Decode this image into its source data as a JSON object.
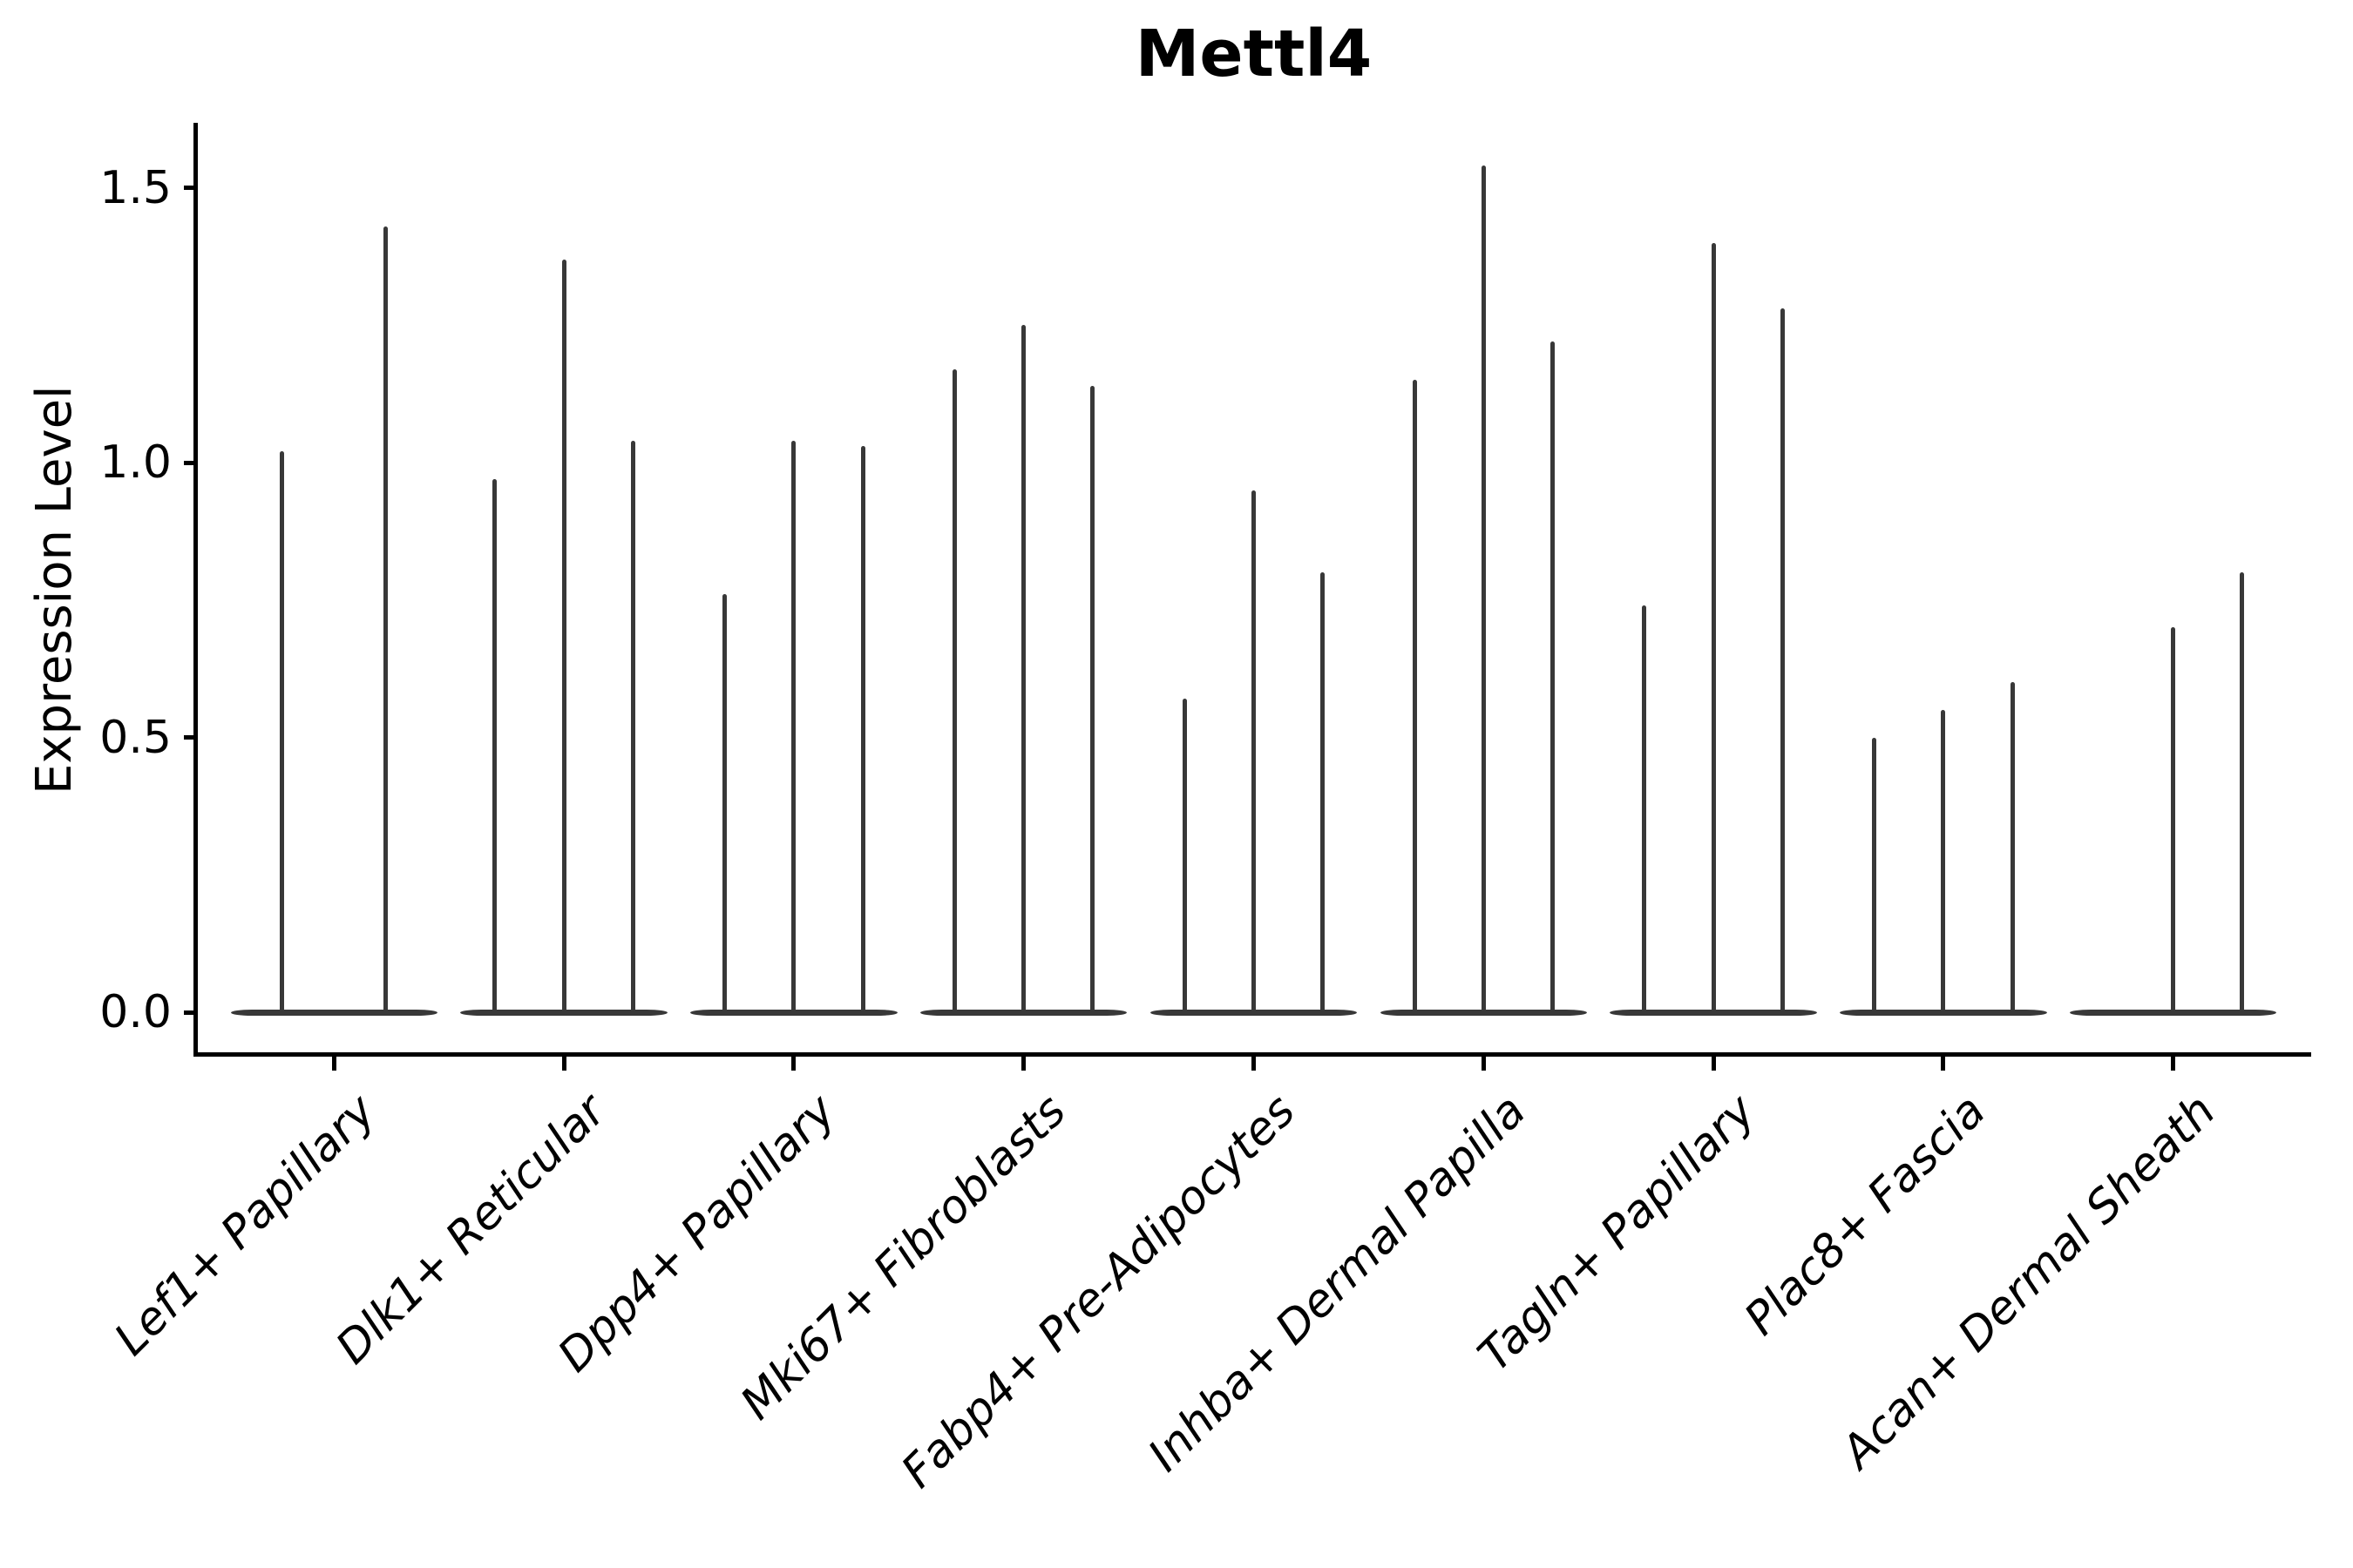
{
  "chart_data": {
    "type": "violin",
    "title": "Mettl4",
    "xlabel": "",
    "ylabel": "Expression Level",
    "legend_position": "none",
    "grid": false,
    "ylim": [
      -0.08,
      1.62
    ],
    "y_ticks": [
      {
        "label": "0.0",
        "value": 0.0
      },
      {
        "label": "0.5",
        "value": 0.5
      },
      {
        "label": "1.0",
        "value": 1.0
      },
      {
        "label": "1.5",
        "value": 1.5
      }
    ],
    "categories": [
      "Lef1+ Papillary",
      "Dlk1+ Reticular",
      "Dpp4+ Papillary",
      "Mki67+ Fibroblasts",
      "Fabp4+ Pre-Adipocytes",
      "Inhba+ Dermal Papilla",
      "Tagln+ Papillary",
      "Plac8+ Fascia",
      "Acan+ Dermal Sheath"
    ],
    "groups": [
      {
        "category": "Lef1+ Papillary",
        "violin_max_values": [
          1.02,
          1.43
        ]
      },
      {
        "category": "Dlk1+ Reticular",
        "violin_max_values": [
          0.97,
          1.37,
          1.04
        ]
      },
      {
        "category": "Dpp4+ Papillary",
        "violin_max_values": [
          0.76,
          1.04,
          1.03
        ]
      },
      {
        "category": "Mki67+ Fibroblasts",
        "violin_max_values": [
          1.17,
          1.25,
          1.14
        ]
      },
      {
        "category": "Fabp4+ Pre-Adipocytes",
        "violin_max_values": [
          0.57,
          0.95,
          0.8
        ]
      },
      {
        "category": "Inhba+ Dermal Papilla",
        "violin_max_values": [
          1.15,
          1.54,
          1.22
        ]
      },
      {
        "category": "Tagln+ Papillary",
        "violin_max_values": [
          0.74,
          1.4,
          1.28
        ]
      },
      {
        "category": "Plac8+ Fascia",
        "violin_max_values": [
          0.5,
          0.55,
          0.6
        ]
      },
      {
        "category": "Acan+ Dermal Sheath",
        "violin_max_values": [
          0.0,
          0.7,
          0.8
        ]
      }
    ],
    "colors": {
      "violin_ink": "#383838",
      "axis": "#000000",
      "background": "#ffffff"
    },
    "notes": "Each violin is collapsed at 0 (wide flat base) with a thin spike rising to its max expression value; a value of 0 means a flat violin with no spike."
  }
}
